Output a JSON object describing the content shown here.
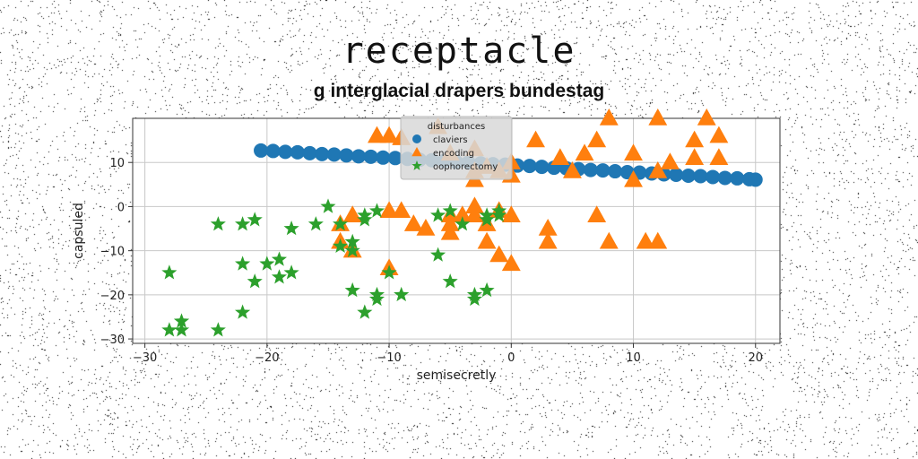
{
  "chart_data": {
    "type": "scatter",
    "title": "receptacle",
    "subtitle": "g interglacial drapers bundestag",
    "xlabel": "semisecretly",
    "ylabel": "capsuled",
    "xlim": [
      -31,
      22
    ],
    "ylim": [
      -31,
      20
    ],
    "xticks": [
      -30,
      -20,
      -10,
      0,
      10,
      20
    ],
    "yticks": [
      -30,
      -20,
      -10,
      0,
      10
    ],
    "grid": true,
    "legend": {
      "title": "disturbances",
      "placement": "upper-center"
    },
    "series": [
      {
        "name": "claviers",
        "marker": "circle",
        "color": "#1f77b4",
        "points": [
          [
            -20.5,
            12.7
          ],
          [
            -19.5,
            12.6
          ],
          [
            -18.5,
            12.4
          ],
          [
            -17.5,
            12.3
          ],
          [
            -16.5,
            12.1
          ],
          [
            -15.5,
            11.9
          ],
          [
            -14.5,
            11.8
          ],
          [
            -13.5,
            11.6
          ],
          [
            -12.5,
            11.4
          ],
          [
            -11.5,
            11.3
          ],
          [
            -10.5,
            11.1
          ],
          [
            -9.5,
            11.0
          ],
          [
            -8.5,
            10.8
          ],
          [
            -7.5,
            10.6
          ],
          [
            -6.5,
            10.5
          ],
          [
            -5.5,
            10.3
          ],
          [
            -4.5,
            10.1
          ],
          [
            -3.5,
            10.0
          ],
          [
            -2.5,
            9.8
          ],
          [
            -1.5,
            9.6
          ],
          [
            -0.5,
            9.5
          ],
          [
            0.5,
            9.3
          ],
          [
            1.5,
            9.2
          ],
          [
            2.5,
            9.0
          ],
          [
            3.5,
            8.8
          ],
          [
            4.5,
            8.7
          ],
          [
            5.5,
            8.5
          ],
          [
            6.5,
            8.3
          ],
          [
            7.5,
            8.2
          ],
          [
            8.5,
            8.0
          ],
          [
            9.5,
            7.8
          ],
          [
            10.5,
            7.7
          ],
          [
            11.5,
            7.5
          ],
          [
            12.5,
            7.3
          ],
          [
            13.5,
            7.2
          ],
          [
            14.5,
            7.0
          ],
          [
            15.5,
            6.9
          ],
          [
            16.5,
            6.7
          ],
          [
            17.5,
            6.5
          ],
          [
            18.5,
            6.4
          ],
          [
            19.5,
            6.2
          ],
          [
            20.0,
            6.1
          ]
        ]
      },
      {
        "name": "encoding",
        "marker": "triangle",
        "color": "#ff7f0e",
        "points": [
          [
            -11,
            16
          ],
          [
            -10,
            16
          ],
          [
            -9,
            15.5
          ],
          [
            -6,
            18
          ],
          [
            -5,
            12
          ],
          [
            -3,
            13
          ],
          [
            -2,
            9
          ],
          [
            0,
            10
          ],
          [
            0,
            7
          ],
          [
            2,
            15
          ],
          [
            4,
            11
          ],
          [
            6,
            12
          ],
          [
            7,
            15
          ],
          [
            8,
            20
          ],
          [
            10,
            12
          ],
          [
            12,
            20
          ],
          [
            13,
            10
          ],
          [
            15,
            11
          ],
          [
            15,
            15
          ],
          [
            16,
            20
          ],
          [
            17,
            16
          ],
          [
            17,
            11
          ],
          [
            12,
            8
          ],
          [
            10,
            6
          ],
          [
            5,
            8
          ],
          [
            -3,
            8
          ],
          [
            -1,
            8
          ],
          [
            -3,
            6
          ],
          [
            -10,
            -1
          ],
          [
            -9,
            -1
          ],
          [
            -8,
            -4
          ],
          [
            -7,
            -5
          ],
          [
            -5,
            -2
          ],
          [
            -4,
            -2
          ],
          [
            -3,
            0
          ],
          [
            -3,
            -2
          ],
          [
            -1,
            -1
          ],
          [
            -2,
            -4
          ],
          [
            0,
            -2
          ],
          [
            -5,
            -4
          ],
          [
            -2,
            -8
          ],
          [
            -1,
            -11
          ],
          [
            0,
            -13
          ],
          [
            3,
            -5
          ],
          [
            3,
            -8
          ],
          [
            7,
            -2
          ],
          [
            8,
            -8
          ],
          [
            11,
            -8
          ],
          [
            12,
            -8
          ],
          [
            -10,
            -14
          ],
          [
            -14,
            -4
          ],
          [
            -13,
            -2
          ],
          [
            -14,
            -8
          ],
          [
            -13,
            -10
          ],
          [
            -5,
            -6
          ]
        ]
      },
      {
        "name": "oophorectomy",
        "marker": "star",
        "color": "#2ca02c",
        "points": [
          [
            -28,
            -15
          ],
          [
            -27,
            -26
          ],
          [
            -27,
            -28
          ],
          [
            -28,
            -28
          ],
          [
            -24,
            -28
          ],
          [
            -24,
            -4
          ],
          [
            -22,
            -24
          ],
          [
            -22,
            -4
          ],
          [
            -21,
            -3
          ],
          [
            -22,
            -13
          ],
          [
            -21,
            -17
          ],
          [
            -20,
            -13
          ],
          [
            -19,
            -12
          ],
          [
            -19,
            -16
          ],
          [
            -18,
            -15
          ],
          [
            -18,
            -5
          ],
          [
            -16,
            -4
          ],
          [
            -15,
            0
          ],
          [
            -14,
            -4
          ],
          [
            -14,
            -9
          ],
          [
            -13,
            -8
          ],
          [
            -13,
            -10
          ],
          [
            -12,
            -3
          ],
          [
            -12,
            -2
          ],
          [
            -11,
            -1
          ],
          [
            -13,
            -19
          ],
          [
            -12,
            -24
          ],
          [
            -11,
            -20
          ],
          [
            -11,
            -21
          ],
          [
            -10,
            -15
          ],
          [
            -9,
            -20
          ],
          [
            -6,
            -11
          ],
          [
            -5,
            -17
          ],
          [
            -5,
            -1
          ],
          [
            -4,
            -4
          ],
          [
            -3,
            -20
          ],
          [
            -2,
            -2
          ],
          [
            -2,
            -19
          ],
          [
            -3,
            -21
          ],
          [
            -1,
            -1
          ],
          [
            -1,
            -2
          ],
          [
            -2,
            -3
          ],
          [
            -6,
            -2
          ]
        ]
      }
    ]
  }
}
